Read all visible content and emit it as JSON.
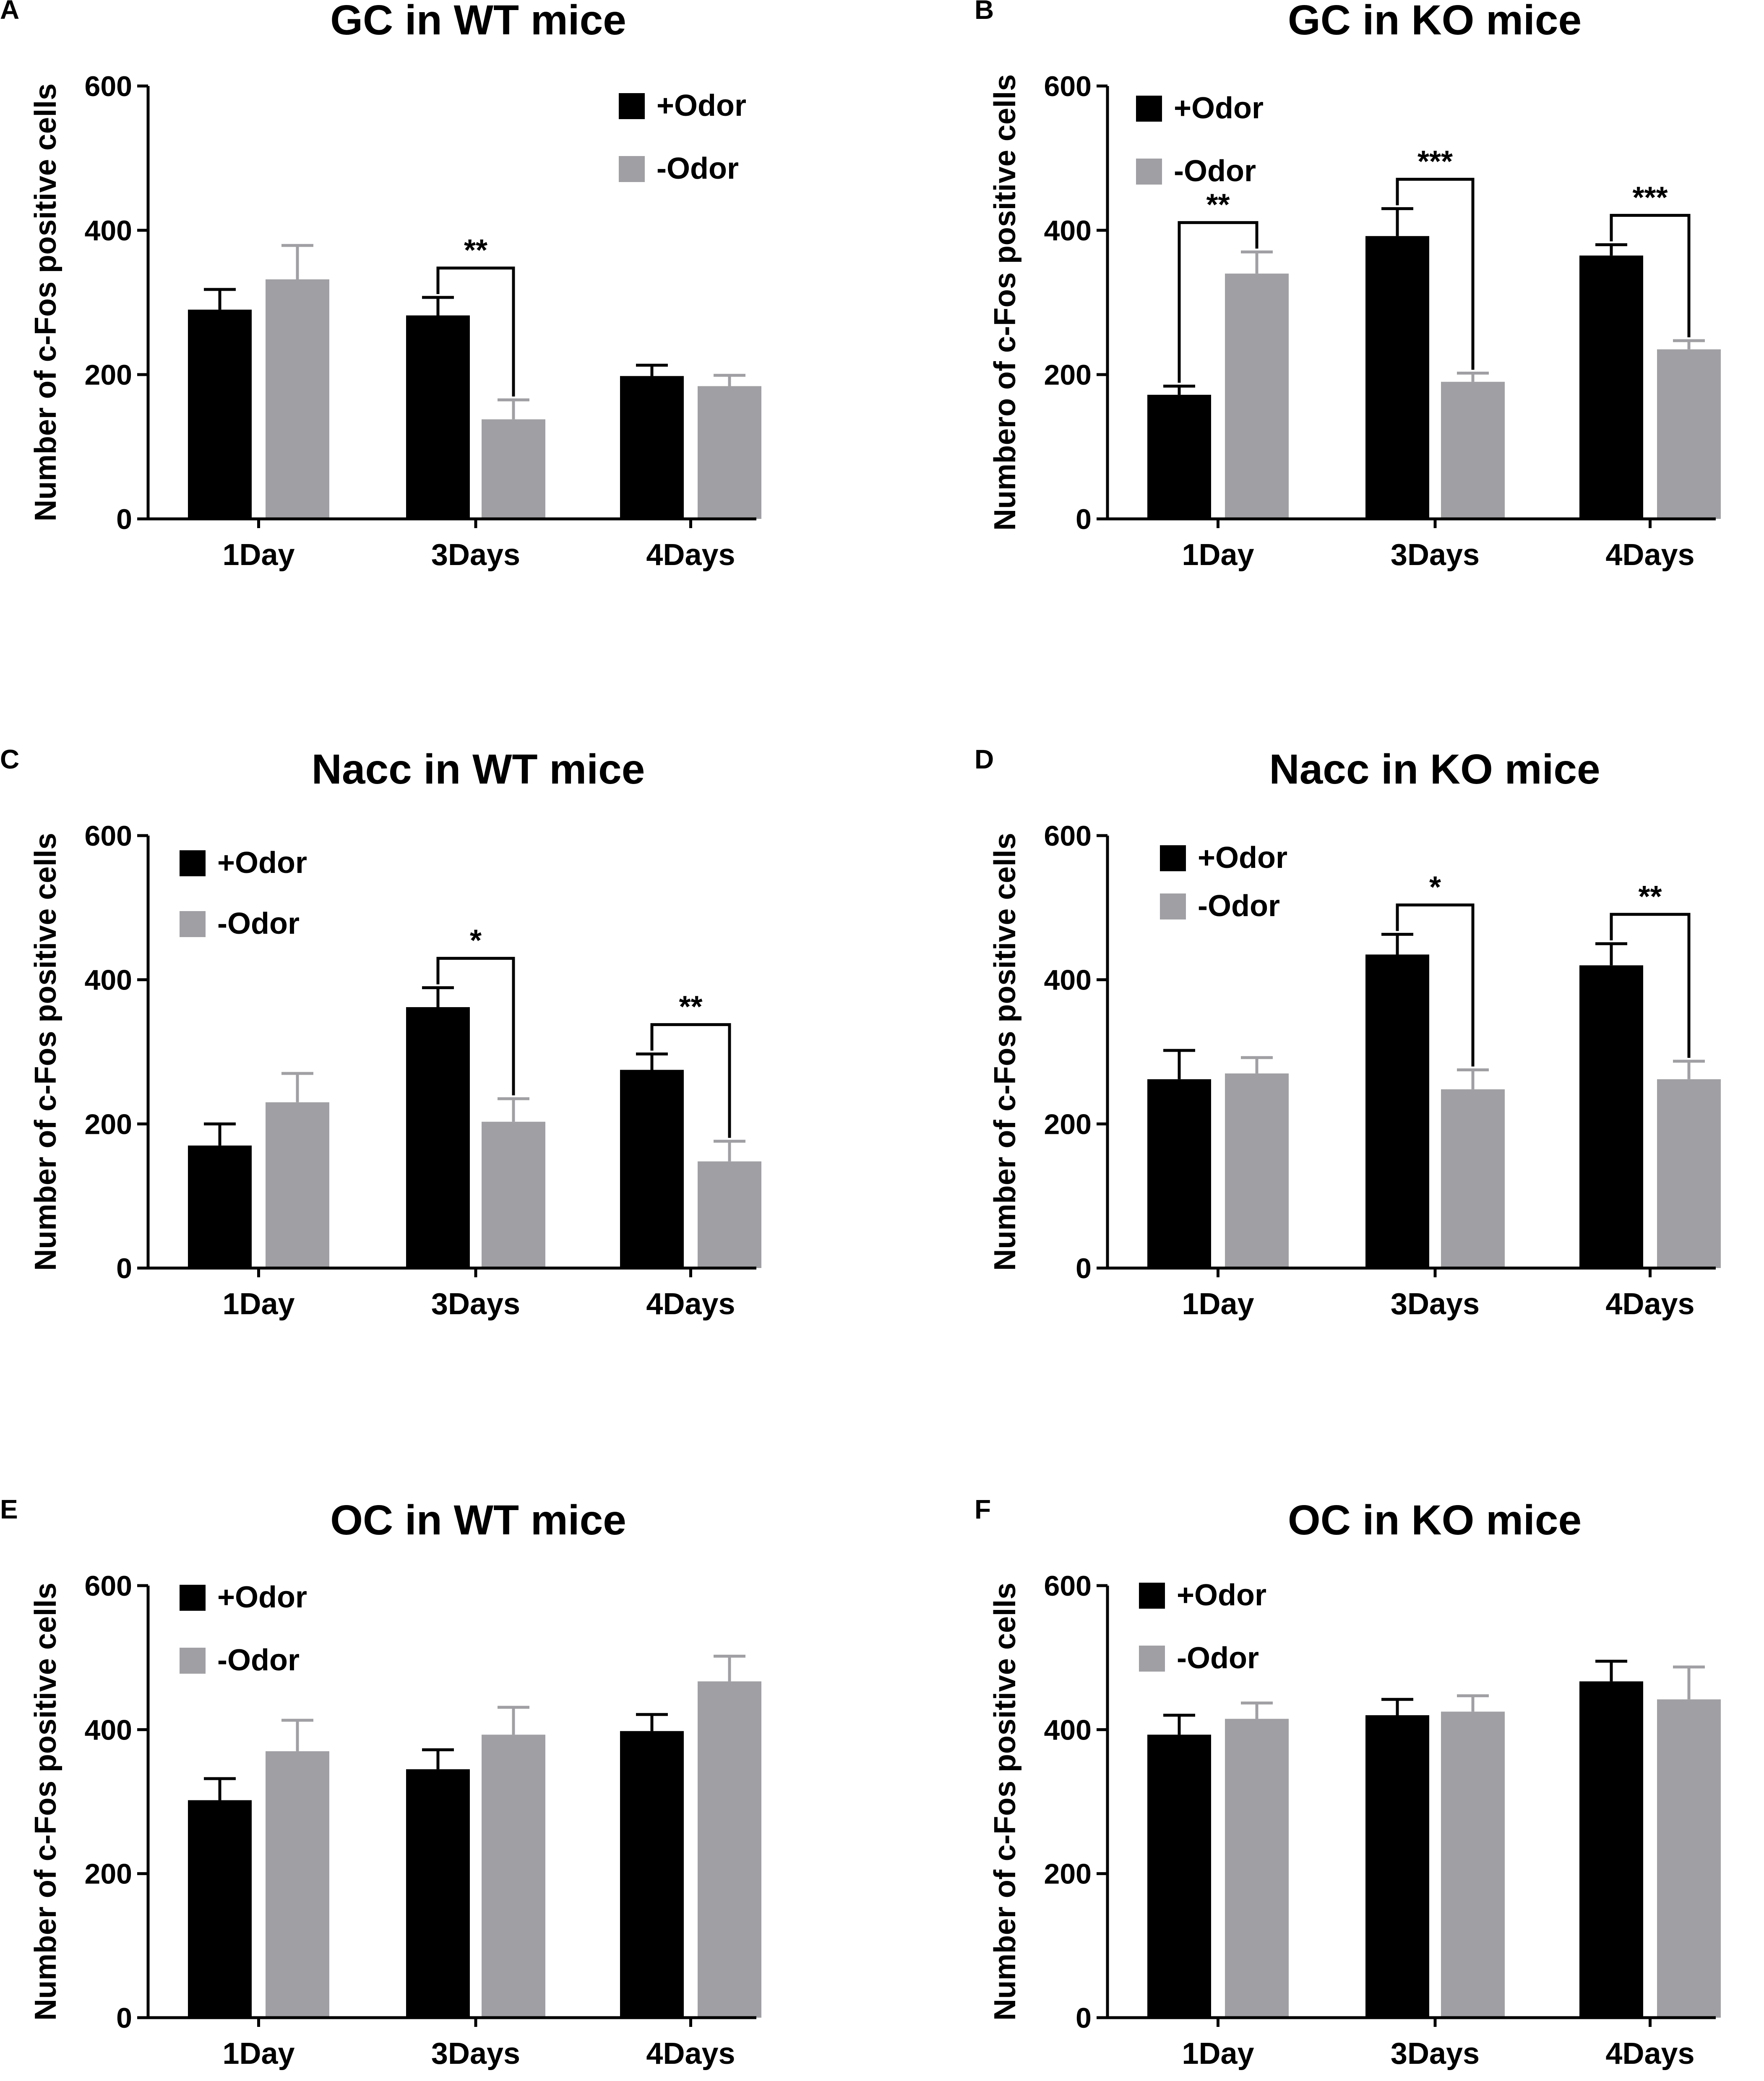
{
  "figure": {
    "colors": {
      "odor_plus": "#000000",
      "odor_minus": "#a0a0a4",
      "axis": "#000000"
    }
  },
  "chart_data": [
    {
      "panel": "A",
      "type": "bar",
      "title": "GC in WT mice",
      "ylabel": "Number of c-Fos positive cells",
      "xlabel": "",
      "categories": [
        "1Day",
        "3Days",
        "4Days"
      ],
      "ylim": [
        0,
        600
      ],
      "yticks": [
        0,
        200,
        400,
        600
      ],
      "legend": {
        "placement": "top-right",
        "entries": [
          "+Odor",
          "-Odor"
        ]
      },
      "series": [
        {
          "name": "+Odor",
          "color": "#000000",
          "values": [
            290,
            282,
            198
          ],
          "errors": [
            28,
            25,
            15
          ]
        },
        {
          "name": "-Odor",
          "color": "#a0a0a4",
          "values": [
            332,
            138,
            184
          ],
          "errors": [
            47,
            27,
            15
          ]
        }
      ],
      "significance": [
        {
          "category_index": 1,
          "label": "**"
        }
      ]
    },
    {
      "panel": "B",
      "type": "bar",
      "title": "GC in KO mice",
      "ylabel": "Numbero of c-Fos positive cells",
      "xlabel": "",
      "categories": [
        "1Day",
        "3Days",
        "4Days"
      ],
      "ylim": [
        0,
        600
      ],
      "yticks": [
        0,
        200,
        400,
        600
      ],
      "legend": {
        "placement": "top-left",
        "entries": [
          "+Odor",
          "-Odor"
        ]
      },
      "series": [
        {
          "name": "+Odor",
          "color": "#000000",
          "values": [
            172,
            392,
            365
          ],
          "errors": [
            12,
            38,
            15
          ]
        },
        {
          "name": "-Odor",
          "color": "#a0a0a4",
          "values": [
            340,
            190,
            235
          ],
          "errors": [
            30,
            12,
            12
          ]
        }
      ],
      "significance": [
        {
          "category_index": 0,
          "label": "**"
        },
        {
          "category_index": 1,
          "label": "***"
        },
        {
          "category_index": 2,
          "label": "***"
        }
      ]
    },
    {
      "panel": "C",
      "type": "bar",
      "title": "Nacc in WT mice",
      "ylabel": "Number of c-Fos positive cells",
      "xlabel": "",
      "categories": [
        "1Day",
        "3Days",
        "4Days"
      ],
      "ylim": [
        0,
        600
      ],
      "yticks": [
        0,
        200,
        400,
        600
      ],
      "legend": {
        "placement": "top-left",
        "entries": [
          "+Odor",
          "-Odor"
        ]
      },
      "series": [
        {
          "name": "+Odor",
          "color": "#000000",
          "values": [
            170,
            362,
            275
          ],
          "errors": [
            30,
            27,
            22
          ]
        },
        {
          "name": "-Odor",
          "color": "#a0a0a4",
          "values": [
            230,
            203,
            148
          ],
          "errors": [
            40,
            32,
            28
          ]
        }
      ],
      "significance": [
        {
          "category_index": 1,
          "label": "*"
        },
        {
          "category_index": 2,
          "label": "**"
        }
      ]
    },
    {
      "panel": "D",
      "type": "bar",
      "title": "Nacc in KO mice",
      "ylabel": "Number of c-Fos positive cells",
      "xlabel": "",
      "categories": [
        "1Day",
        "3Days",
        "4Days"
      ],
      "ylim": [
        0,
        600
      ],
      "yticks": [
        0,
        200,
        400,
        600
      ],
      "legend": {
        "placement": "top-left",
        "entries": [
          "+Odor",
          "-Odor"
        ]
      },
      "series": [
        {
          "name": "+Odor",
          "color": "#000000",
          "values": [
            262,
            435,
            420
          ],
          "errors": [
            40,
            28,
            30
          ]
        },
        {
          "name": "-Odor",
          "color": "#a0a0a4",
          "values": [
            270,
            248,
            262
          ],
          "errors": [
            22,
            27,
            25
          ]
        }
      ],
      "significance": [
        {
          "category_index": 1,
          "label": "*"
        },
        {
          "category_index": 2,
          "label": "**"
        }
      ]
    },
    {
      "panel": "E",
      "type": "bar",
      "title": "OC in WT mice",
      "ylabel": "Number of c-Fos positive cells",
      "xlabel": "",
      "categories": [
        "1Day",
        "3Days",
        "4Days"
      ],
      "ylim": [
        0,
        600
      ],
      "yticks": [
        0,
        200,
        400,
        600
      ],
      "legend": {
        "placement": "top-left",
        "entries": [
          "+Odor",
          "-Odor"
        ]
      },
      "series": [
        {
          "name": "+Odor",
          "color": "#000000",
          "values": [
            302,
            345,
            398
          ],
          "errors": [
            30,
            27,
            23
          ]
        },
        {
          "name": "-Odor",
          "color": "#a0a0a4",
          "values": [
            370,
            393,
            467
          ],
          "errors": [
            43,
            38,
            35
          ]
        }
      ],
      "significance": []
    },
    {
      "panel": "F",
      "type": "bar",
      "title": "OC in KO mice",
      "ylabel": "Number of c-Fos positive cells",
      "xlabel": "",
      "categories": [
        "1Day",
        "3Days",
        "4Days"
      ],
      "ylim": [
        0,
        600
      ],
      "yticks": [
        0,
        200,
        400,
        600
      ],
      "legend": {
        "placement": "top-left",
        "entries": [
          "+Odor",
          "-Odor"
        ]
      },
      "series": [
        {
          "name": "+Odor",
          "color": "#000000",
          "values": [
            393,
            420,
            467
          ],
          "errors": [
            27,
            22,
            28
          ]
        },
        {
          "name": "-Odor",
          "color": "#a0a0a4",
          "values": [
            415,
            425,
            442
          ],
          "errors": [
            22,
            22,
            45
          ]
        }
      ],
      "significance": []
    }
  ]
}
